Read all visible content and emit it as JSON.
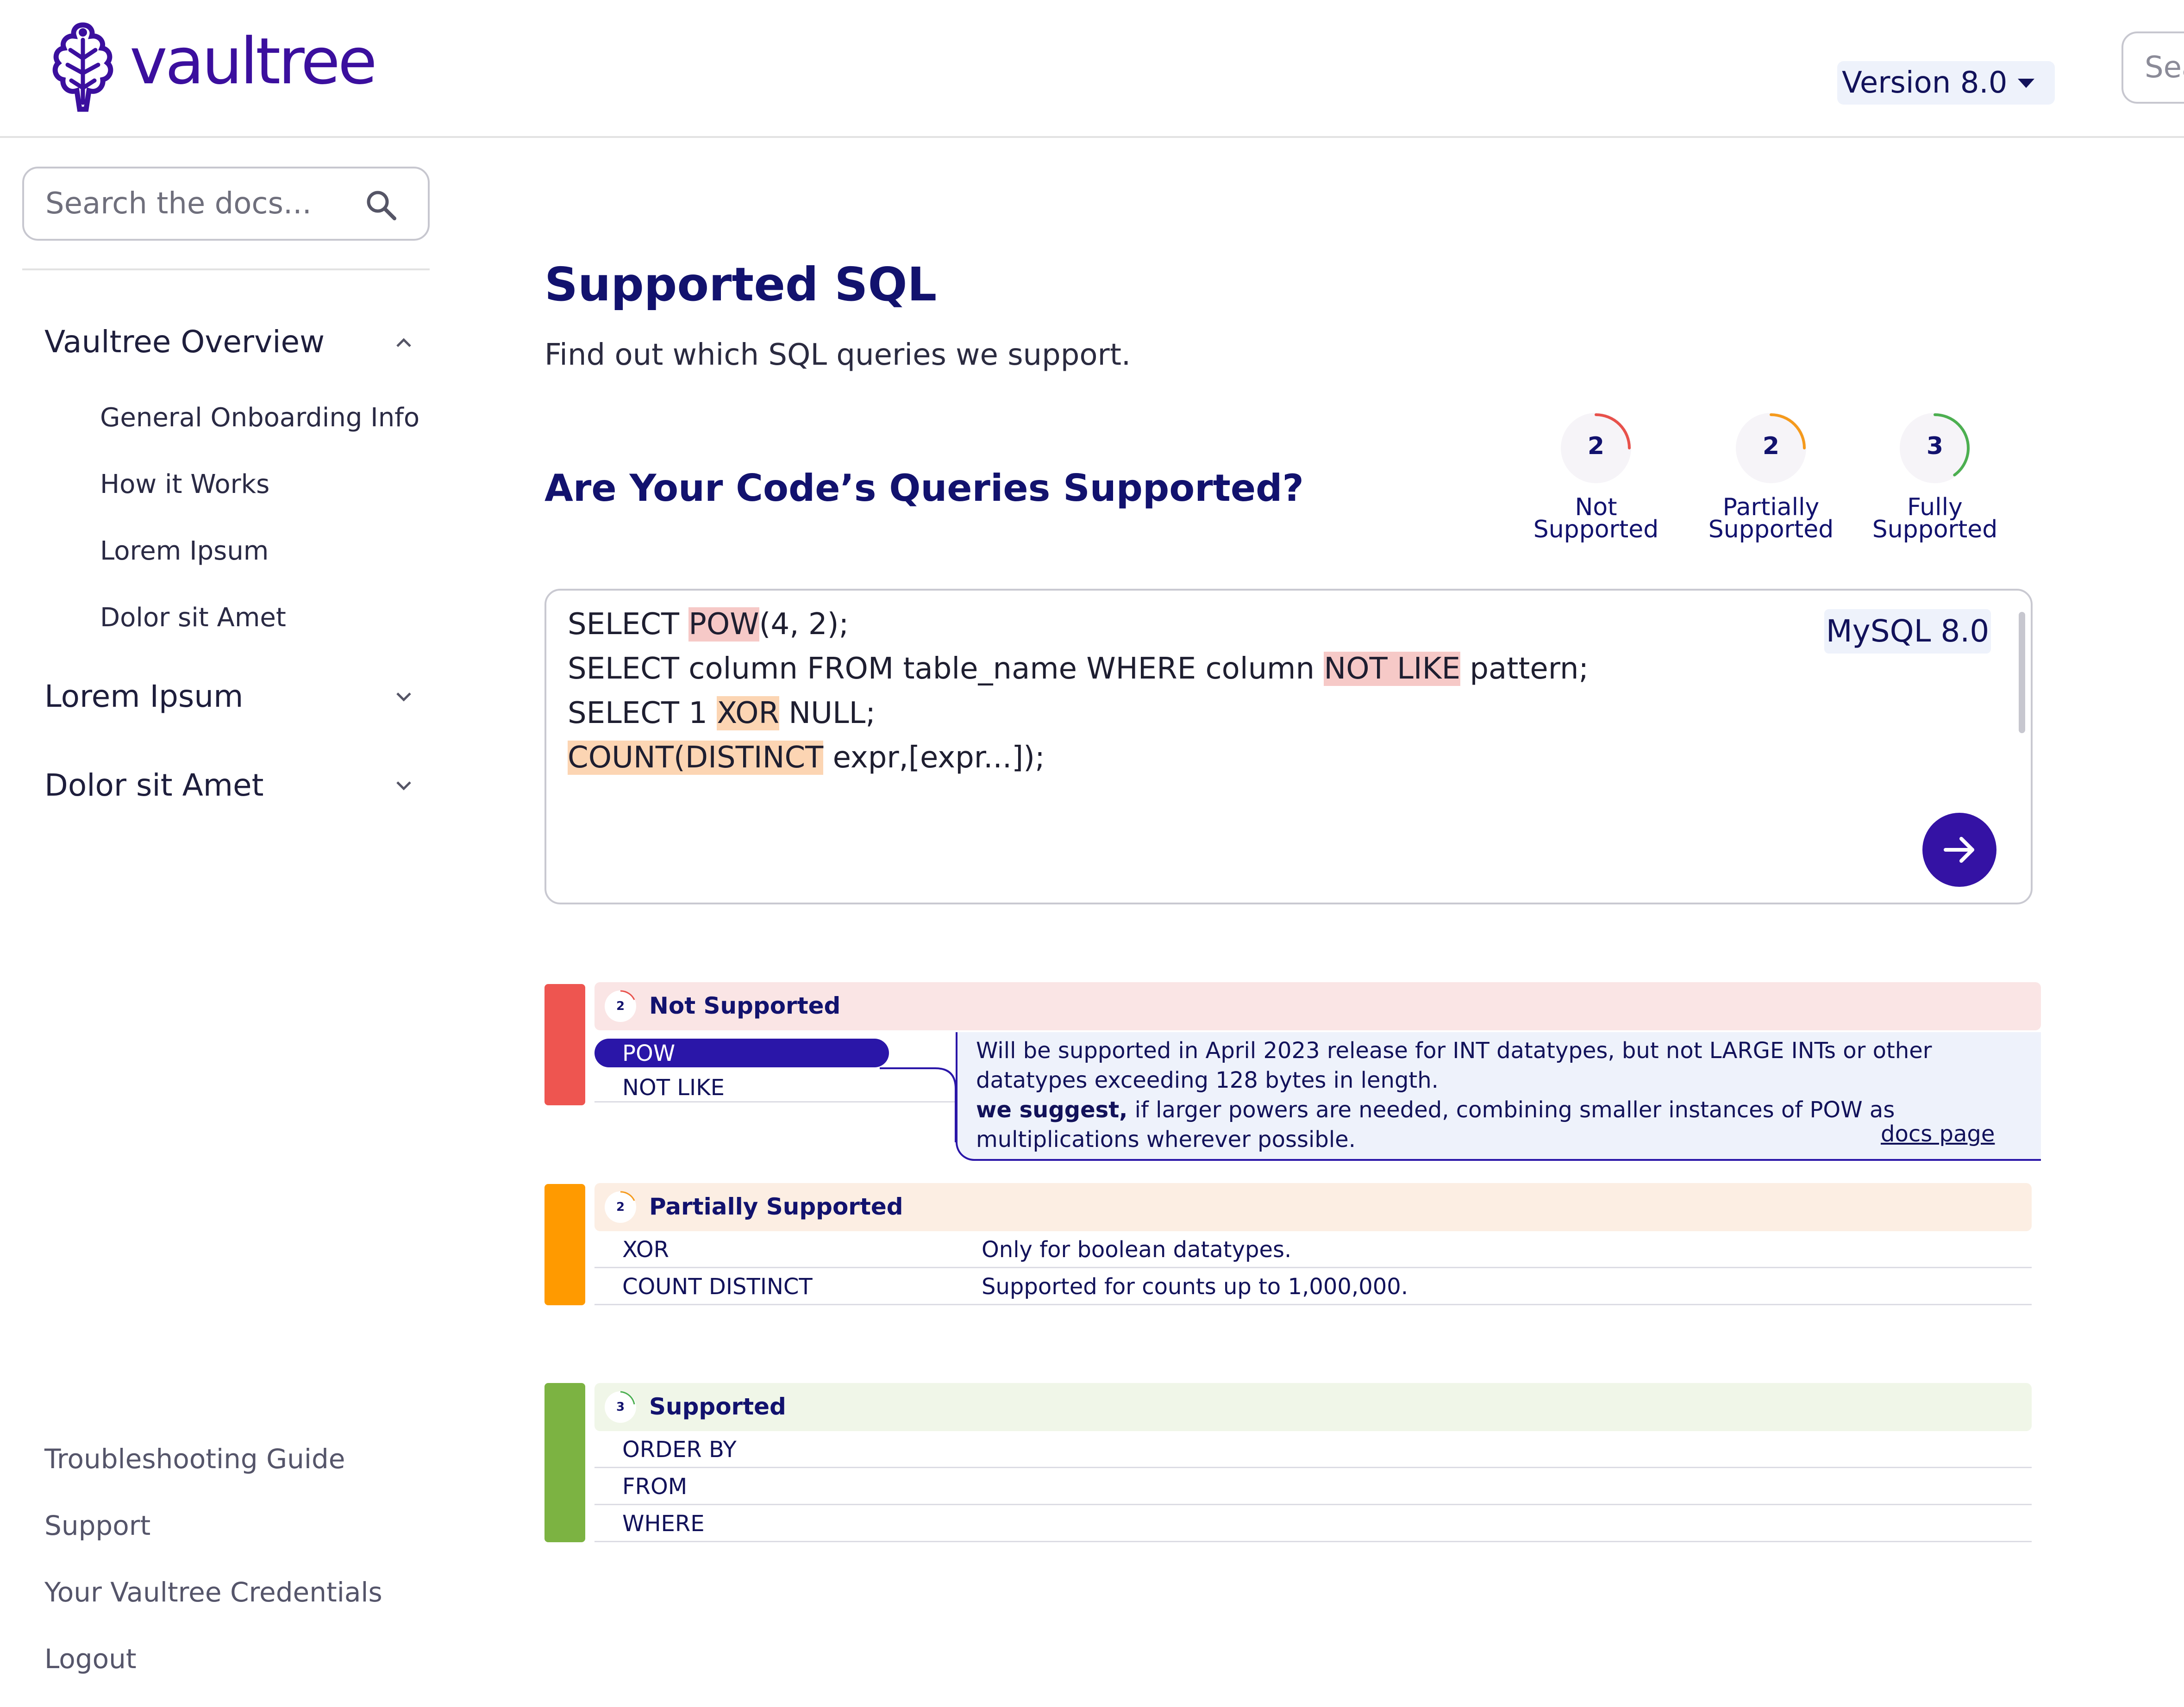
{
  "header": {
    "brand": "vaultree",
    "version_label": "Version 8.0",
    "search_placeholder": "Sea"
  },
  "sidebar": {
    "search_placeholder": "Search the docs...",
    "sections": [
      {
        "label": "Vaultree Overview",
        "expanded": true,
        "items": [
          "General Onboarding Info",
          "How it Works",
          "Lorem Ipsum",
          "Dolor sit Amet"
        ]
      },
      {
        "label": "Lorem Ipsum",
        "expanded": false
      },
      {
        "label": "Dolor sit Amet",
        "expanded": false
      }
    ],
    "footer_links": [
      "Troubleshooting Guide",
      "Support",
      "Your Vaultree Credentials",
      "Logout"
    ]
  },
  "main": {
    "title": "Supported SQL",
    "subtitle": "Find out which SQL queries we support.",
    "section_title": "Are Your Code’s Queries Supported?",
    "stats": [
      {
        "count": "2",
        "label_line1": "Not",
        "label_line2": "Supported",
        "color": "#e8514b",
        "fraction": 0.25
      },
      {
        "count": "2",
        "label_line1": "Partially",
        "label_line2": "Supported",
        "color": "#f59a1c",
        "fraction": 0.25
      },
      {
        "count": "3",
        "label_line1": "Fully",
        "label_line2": "Supported",
        "color": "#4caf50",
        "fraction": 0.4
      }
    ],
    "editor": {
      "dialect": "MySQL 8.0",
      "lines": [
        {
          "pre": "SELECT ",
          "hl": "POW",
          "hl_color": "red",
          "post": "(4, 2);"
        },
        {
          "pre": "SELECT column FROM table_name WHERE column ",
          "hl": "NOT LIKE",
          "hl_color": "red",
          "post": " pattern;"
        },
        {
          "pre": "SELECT 1 ",
          "hl": "XOR",
          "hl_color": "orange",
          "post": " NULL;"
        },
        {
          "pre": "",
          "hl": "COUNT(DISTINCT",
          "hl_color": "orange",
          "post": " expr,[expr...]);"
        }
      ]
    },
    "groups": {
      "not_supported": {
        "count": "2",
        "label": "Not Supported",
        "color": "#ee5550",
        "bg": "#fae5e5",
        "selected_item": "POW",
        "other_item": "NOT LIKE",
        "detail": {
          "line1": "Will be supported in April 2023 release for INT datatypes, but not LARGE INTs or other",
          "line2": "datatypes exceeding 128 bytes in length.",
          "suggest_bold": "we suggest,",
          "suggest_rest": " if larger powers are needed, combining smaller instances of POW as",
          "line4": "multiplications wherever possible.",
          "link": "docs page"
        }
      },
      "partially_supported": {
        "count": "2",
        "label": "Partially Supported",
        "color": "#ff9a00",
        "bg": "#fceee3",
        "rows": [
          {
            "name": "XOR",
            "desc": "Only for boolean datatypes."
          },
          {
            "name": "COUNT DISTINCT",
            "desc": "Supported for counts up to 1,000,000."
          }
        ]
      },
      "supported": {
        "count": "3",
        "label": "Supported",
        "color": "#7cb342",
        "bg": "#f0f6e8",
        "rows": [
          {
            "name": "ORDER BY"
          },
          {
            "name": "FROM"
          },
          {
            "name": "WHERE"
          }
        ]
      }
    }
  }
}
